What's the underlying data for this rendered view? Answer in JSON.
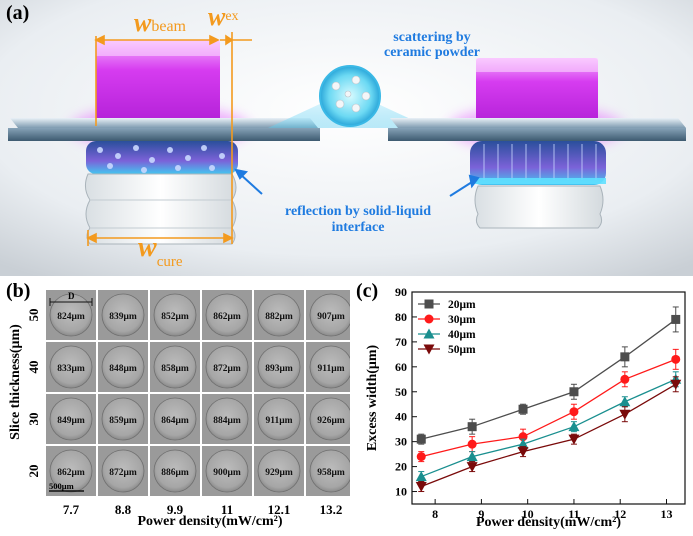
{
  "panel_a": {
    "label": "(a)",
    "w_beam_w": "w",
    "w_beam_sub": "beam",
    "w_ex_w": "w",
    "w_ex_sub": "ex",
    "w_cure_w": "w",
    "w_cure_sub": "cure",
    "scatter_line1": "scattering by",
    "scatter_line2": "ceramic powder",
    "reflect_line1": "reflection by solid-liquid",
    "reflect_line2": "interface"
  },
  "panel_b": {
    "label": "(b)",
    "ylabel": "Slice thickness(μm)",
    "xlabel": "Power density(mW/cm²)",
    "diameter_label": "D",
    "scale_label": "500μm",
    "row_labels": [
      "50",
      "40",
      "30",
      "20"
    ],
    "col_labels": [
      "7.7",
      "8.8",
      "9.9",
      "11",
      "12.1",
      "13.2"
    ],
    "grid": [
      [
        "824μm",
        "839μm",
        "852μm",
        "862μm",
        "882μm",
        "907μm"
      ],
      [
        "833μm",
        "848μm",
        "858μm",
        "872μm",
        "893μm",
        "911μm"
      ],
      [
        "849μm",
        "859μm",
        "864μm",
        "884μm",
        "911μm",
        "926μm"
      ],
      [
        "862μm",
        "872μm",
        "886μm",
        "900μm",
        "929μm",
        "958μm"
      ]
    ]
  },
  "panel_c": {
    "label": "(c)"
  },
  "chart_data": {
    "type": "line",
    "title": "",
    "xlabel": "Power density(mW/cm²)",
    "ylabel": "Excess width(μm)",
    "xlim": [
      7.5,
      13.4
    ],
    "ylim": [
      5,
      90
    ],
    "xticks": [
      8,
      9,
      10,
      11,
      12,
      13
    ],
    "yticks": [
      10,
      20,
      30,
      40,
      50,
      60,
      70,
      80,
      90
    ],
    "legend_position": "top-left",
    "x": [
      7.7,
      8.8,
      9.9,
      11,
      12.1,
      13.2
    ],
    "series": [
      {
        "name": "20μm",
        "color": "#4d4d4d",
        "marker": "square",
        "values": [
          31,
          36,
          43,
          50,
          64,
          79
        ],
        "errors": [
          2,
          3,
          2,
          3,
          4,
          5
        ]
      },
      {
        "name": "30μm",
        "color": "#ff1a1a",
        "marker": "circle",
        "values": [
          24,
          29,
          32,
          42,
          55,
          63
        ],
        "errors": [
          2,
          3,
          3,
          3,
          3,
          4
        ]
      },
      {
        "name": "40μm",
        "color": "#1a8f8f",
        "marker": "triangle-up",
        "values": [
          16,
          24,
          29,
          36,
          46,
          55
        ],
        "errors": [
          2,
          2,
          2,
          2,
          2,
          3
        ]
      },
      {
        "name": "50μm",
        "color": "#7a0a0a",
        "marker": "triangle-down",
        "values": [
          12,
          20,
          26,
          31,
          41,
          53
        ],
        "errors": [
          2,
          2,
          2,
          2,
          3,
          3
        ]
      }
    ]
  }
}
